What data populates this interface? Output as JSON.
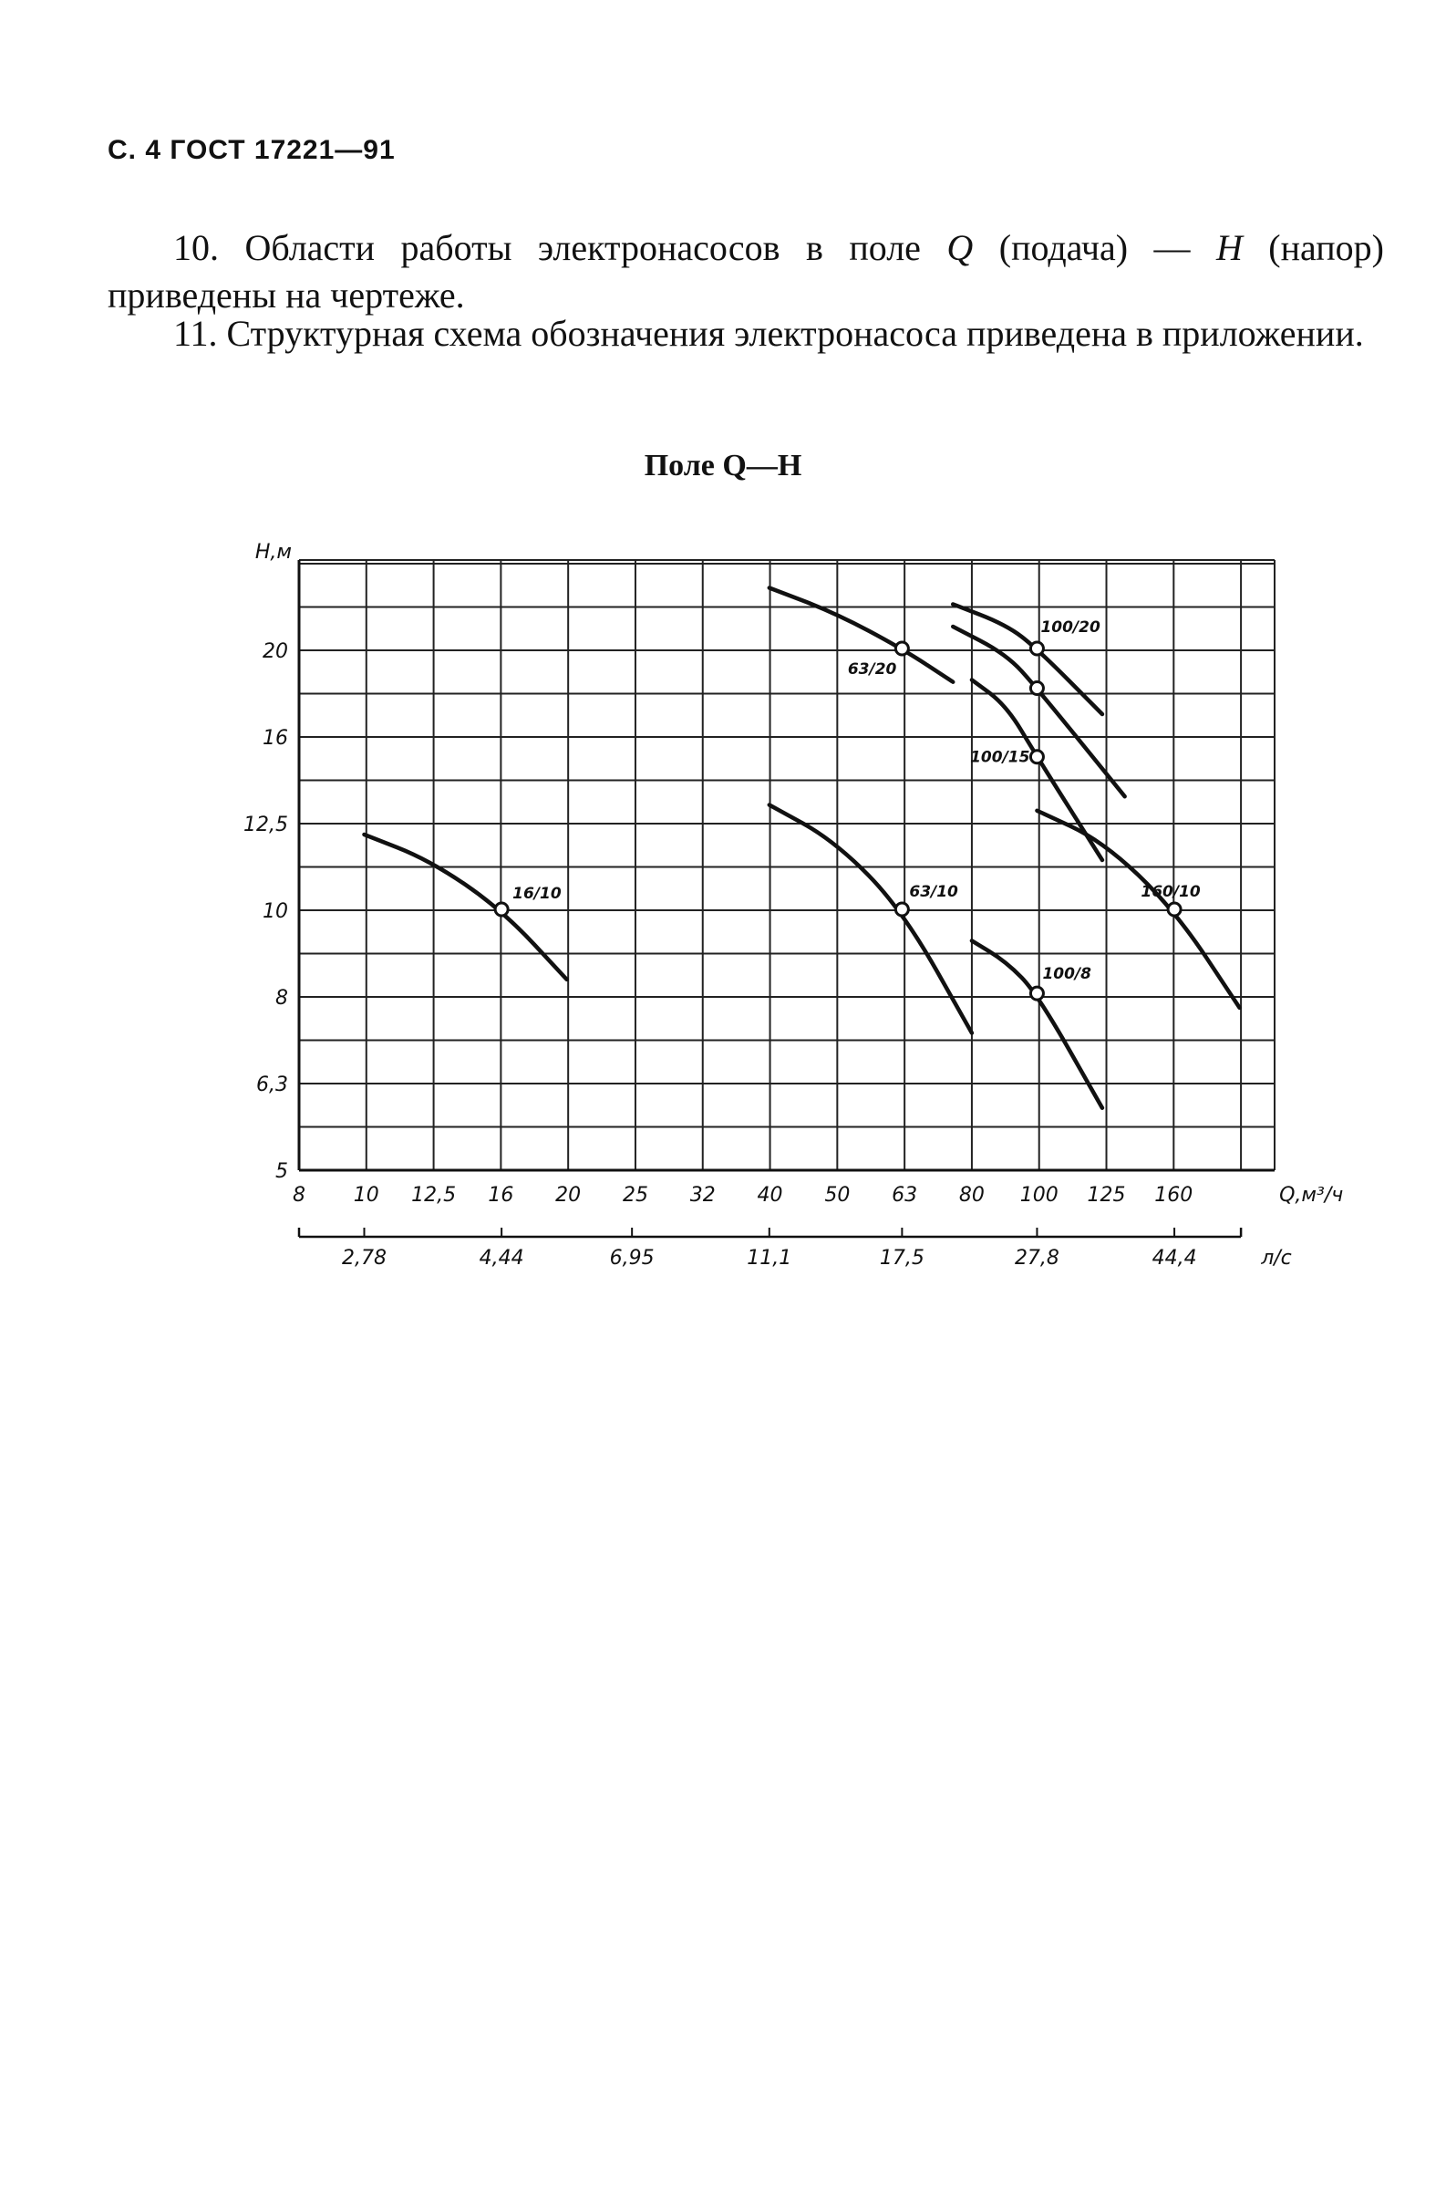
{
  "header": "С. 4 ГОСТ 17221—91",
  "para10": {
    "number": "10.",
    "t1": "Области работы электронасосов в поле ",
    "q": "Q",
    "t2": " (подача) — ",
    "h": "H",
    "t3": " (напор) приведены на чертеже."
  },
  "para11": {
    "number": "11.",
    "text": "Структурная схема обозначения электронасоса приведена в приложении."
  },
  "chart_data": {
    "type": "line",
    "title": "Поле Q—H",
    "ylabel": "H,м",
    "xlabel": "Q,м³/ч",
    "x2label": "л/с",
    "x_scale": "log (standard series)",
    "x_ticks": [
      "8",
      "10",
      "12,5",
      "16",
      "20",
      "25",
      "32",
      "40",
      "50",
      "63",
      "80",
      "100",
      "125",
      "160"
    ],
    "x2_ticks": [
      "2,78",
      "4,44",
      "6,95",
      "11,1",
      "17,5",
      "27,8",
      "44,4"
    ],
    "y_scale": "log (standard series)",
    "y_ticks": [
      "5",
      "6,3",
      "8",
      "10",
      "12,5",
      "16",
      "20"
    ],
    "grid": true,
    "series": [
      {
        "name": "16/10",
        "rated": [
          16,
          10
        ],
        "x": [
          10,
          12.5,
          16,
          20
        ],
        "y": [
          12.2,
          11.4,
          10,
          8.3
        ]
      },
      {
        "name": "63/10",
        "rated": [
          63,
          10
        ],
        "x": [
          40,
          50,
          63,
          80
        ],
        "y": [
          13.2,
          12,
          10,
          7.2
        ]
      },
      {
        "name": "63/20",
        "rated": [
          63,
          20
        ],
        "x": [
          40,
          50,
          63,
          75
        ],
        "y": [
          23.5,
          22,
          20,
          18.3
        ]
      },
      {
        "name": "100/8",
        "rated": [
          100,
          8
        ],
        "x": [
          80,
          90,
          100,
          125
        ],
        "y": [
          9.2,
          8.7,
          8,
          5.9
        ]
      },
      {
        "name": "100/15",
        "rated": [
          100,
          15
        ],
        "x": [
          80,
          90,
          100,
          125
        ],
        "y": [
          18.4,
          17.2,
          15,
          11.4
        ]
      },
      {
        "name": "100/20",
        "rated": [
          100,
          20
        ],
        "x": [
          75,
          90,
          100,
          125
        ],
        "y": [
          22.5,
          21.3,
          20,
          16.8
        ]
      },
      {
        "name": "",
        "rated": [
          100,
          18
        ],
        "x": [
          75,
          90,
          100,
          135
        ],
        "y": [
          21.2,
          19.7,
          18,
          13.5
        ]
      },
      {
        "name": "160/10",
        "rated": [
          160,
          10
        ],
        "x": [
          100,
          125,
          160,
          200
        ],
        "y": [
          13,
          12,
          10,
          7.7
        ]
      }
    ]
  }
}
